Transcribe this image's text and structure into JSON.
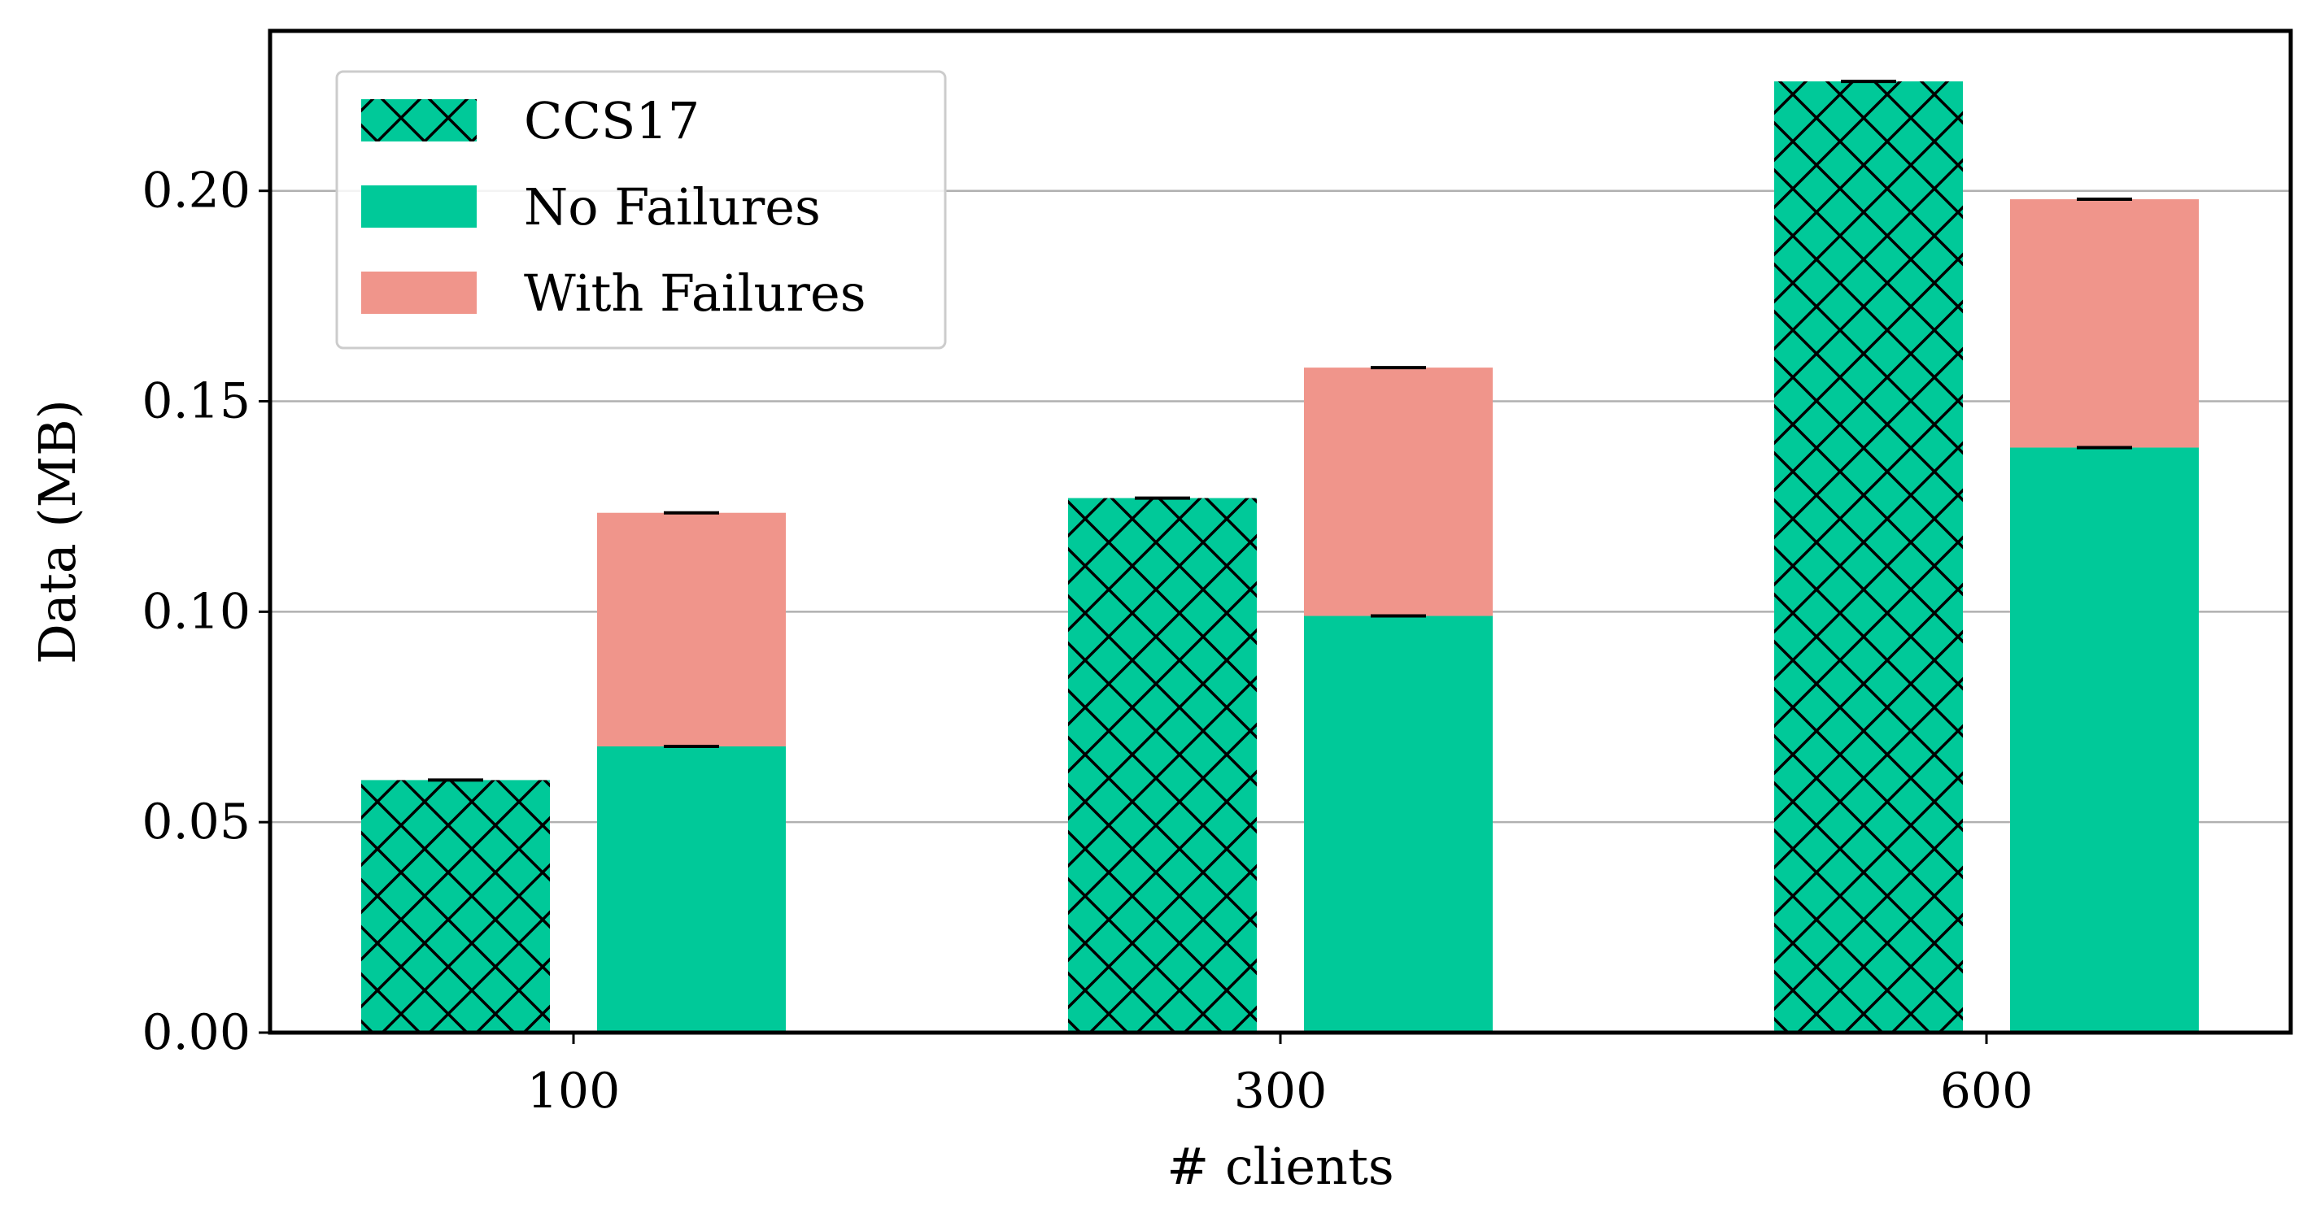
{
  "chart_data": {
    "type": "bar",
    "categories": [
      "100",
      "300",
      "600"
    ],
    "xlabel": "# clients",
    "ylabel": "Data (MB)",
    "ylim": [
      0,
      0.238
    ],
    "yticks": [
      "0.00",
      "0.05",
      "0.10",
      "0.15",
      "0.20"
    ],
    "grid": "y",
    "legend_position": "top-left",
    "series": [
      {
        "name": "CCS17",
        "values": [
          0.06,
          0.127,
          0.226
        ],
        "color": "#00c999",
        "pattern": "crosshatch"
      },
      {
        "name": "No Failures",
        "values": [
          0.068,
          0.099,
          0.139
        ],
        "color": "#00c999"
      },
      {
        "name": "With Failures",
        "values": [
          0.0555,
          0.059,
          0.059
        ],
        "color": "#f0958b",
        "stacked_on": "No Failures"
      }
    ],
    "legend": [
      "CCS17",
      "No Failures",
      "With Failures"
    ]
  }
}
